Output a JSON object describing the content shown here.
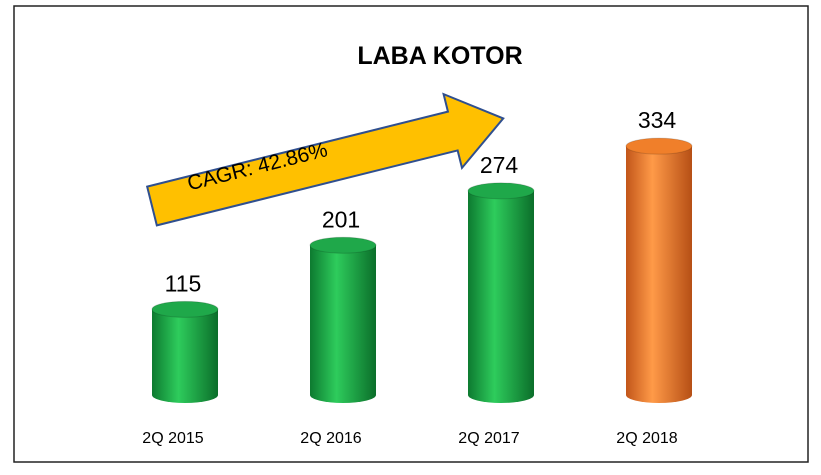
{
  "chart_data": {
    "type": "bar",
    "title": "LABA KOTOR",
    "annotation": "CAGR: 42.86%",
    "categories": [
      "2Q 2015",
      "2Q 2016",
      "2Q 2017",
      "2Q 2018"
    ],
    "values": [
      115,
      201,
      274,
      334
    ],
    "colors": [
      "#1fa84a",
      "#1fa84a",
      "#1fa84a",
      "#f07f2a"
    ]
  }
}
